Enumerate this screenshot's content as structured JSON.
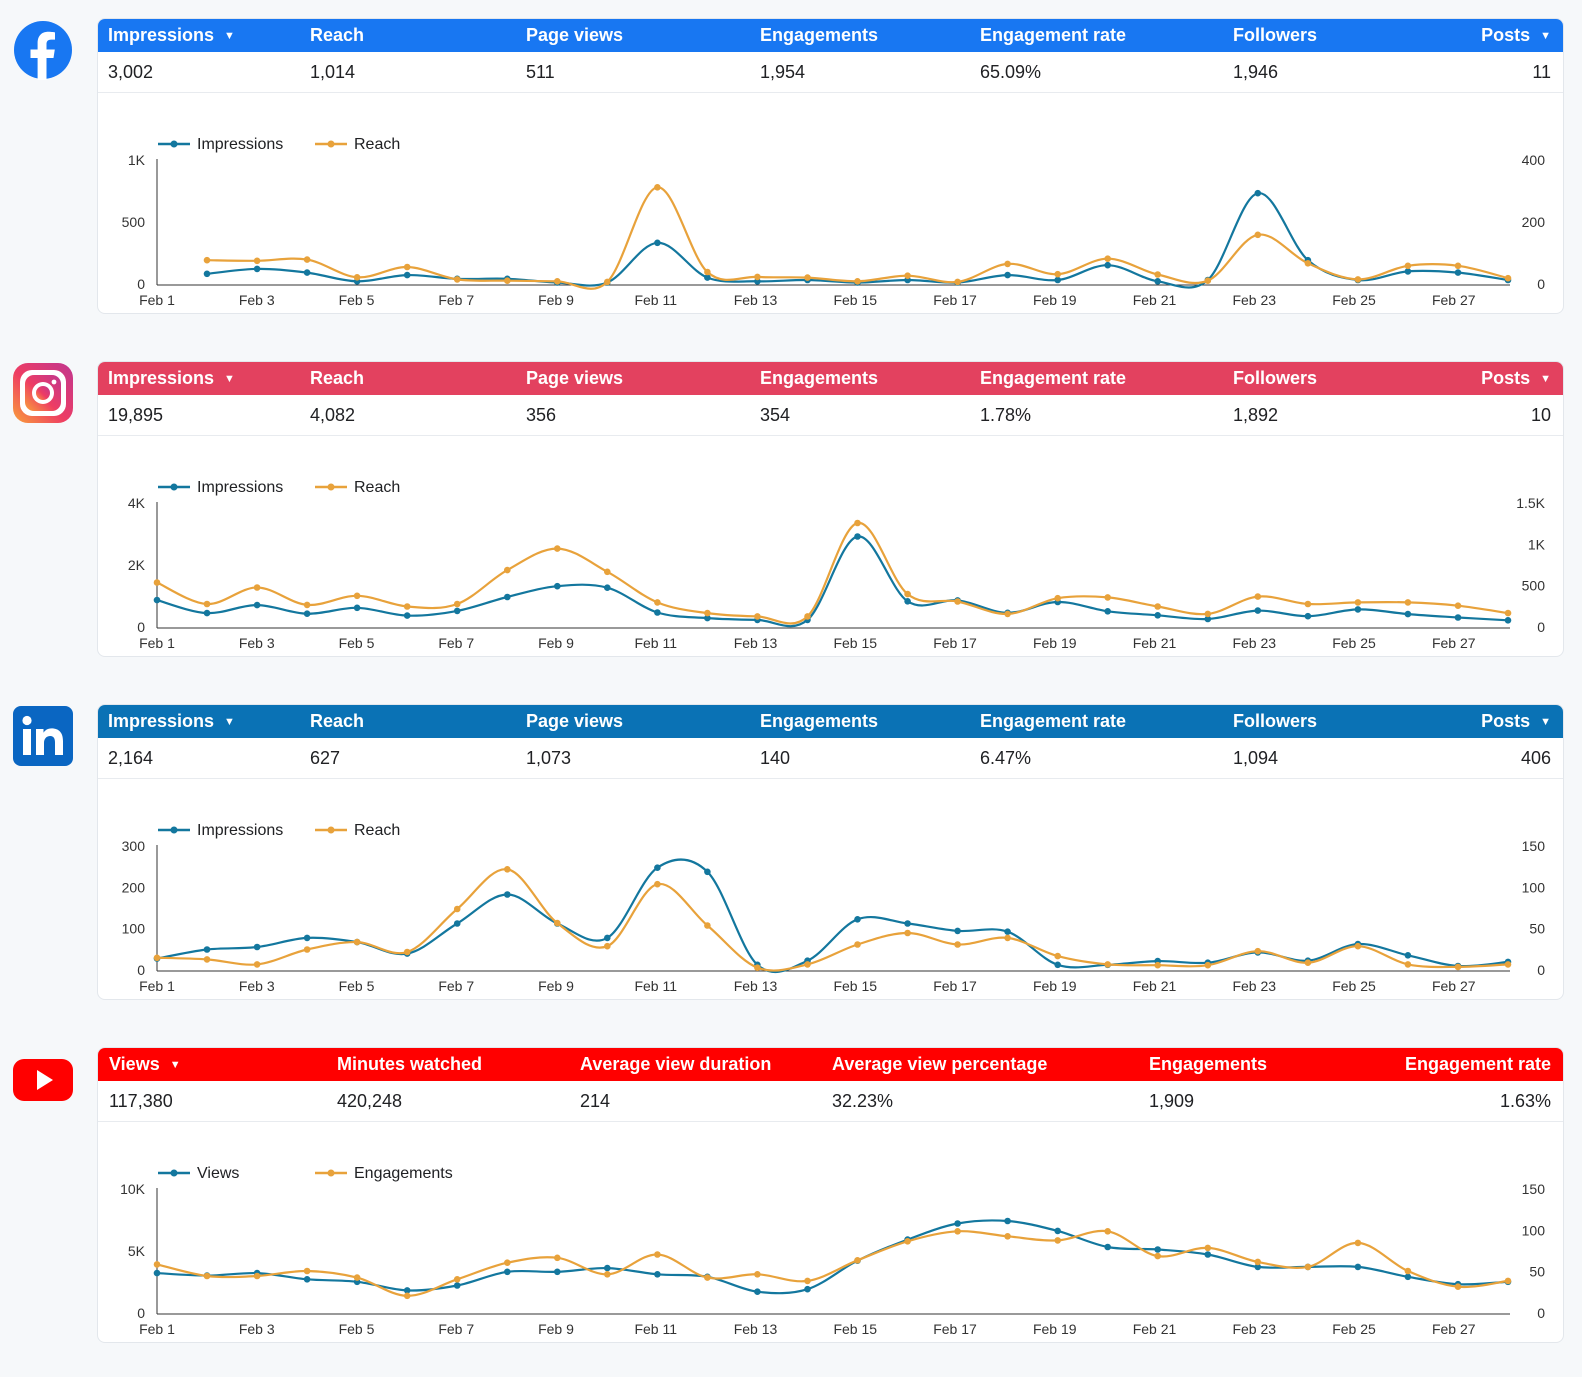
{
  "colors": {
    "primary_series": "#13779e",
    "secondary_series": "#e8a23b",
    "facebook": "#1877f2",
    "instagram": "#e3415f",
    "linkedin": "#0a72b5",
    "youtube": "#ff0000"
  },
  "x_labels": [
    "Feb 1",
    "Feb 3",
    "Feb 5",
    "Feb 7",
    "Feb 9",
    "Feb 11",
    "Feb 13",
    "Feb 15",
    "Feb 17",
    "Feb 19",
    "Feb 21",
    "Feb 23",
    "Feb 25",
    "Feb 27"
  ],
  "sections": [
    {
      "platform": "facebook",
      "icon": "facebook-logo-icon",
      "header_color": "#1877f2",
      "metrics": [
        {
          "label": "Impressions",
          "value": "3,002",
          "sortable": true
        },
        {
          "label": "Reach",
          "value": "1,014"
        },
        {
          "label": "Page views",
          "value": "511"
        },
        {
          "label": "Engagements",
          "value": "1,954"
        },
        {
          "label": "Engagement rate",
          "value": "65.09%"
        },
        {
          "label": "Followers",
          "value": "1,946"
        },
        {
          "label": "Posts",
          "value": "11",
          "sortable": true
        }
      ]
    },
    {
      "platform": "instagram",
      "icon": "instagram-logo-icon",
      "header_color": "#e3415f",
      "metrics": [
        {
          "label": "Impressions",
          "value": "19,895",
          "sortable": true
        },
        {
          "label": "Reach",
          "value": "4,082"
        },
        {
          "label": "Page views",
          "value": "356"
        },
        {
          "label": "Engagements",
          "value": "354"
        },
        {
          "label": "Engagement rate",
          "value": "1.78%"
        },
        {
          "label": "Followers",
          "value": "1,892"
        },
        {
          "label": "Posts",
          "value": "10",
          "sortable": true
        }
      ]
    },
    {
      "platform": "linkedin",
      "icon": "linkedin-logo-icon",
      "header_color": "#0a72b5",
      "metrics": [
        {
          "label": "Impressions",
          "value": "2,164",
          "sortable": true
        },
        {
          "label": "Reach",
          "value": "627"
        },
        {
          "label": "Page views",
          "value": "1,073"
        },
        {
          "label": "Engagements",
          "value": "140"
        },
        {
          "label": "Engagement rate",
          "value": "6.47%"
        },
        {
          "label": "Followers",
          "value": "1,094"
        },
        {
          "label": "Posts",
          "value": "406",
          "sortable": true
        }
      ]
    },
    {
      "platform": "youtube",
      "icon": "youtube-logo-icon",
      "header_color": "#ff0000",
      "metrics": [
        {
          "label": "Views",
          "value": "117,380",
          "sortable": true
        },
        {
          "label": "Minutes watched",
          "value": "420,248"
        },
        {
          "label": "Average view duration",
          "value": "214"
        },
        {
          "label": "Average view percentage",
          "value": "32.23%"
        },
        {
          "label": "Engagements",
          "value": "1,909"
        },
        {
          "label": "Engagement rate",
          "value": "1.63%"
        }
      ]
    }
  ],
  "chart_data": [
    {
      "type": "line",
      "platform": "facebook",
      "x": [
        "Feb 1",
        "Feb 2",
        "Feb 3",
        "Feb 4",
        "Feb 5",
        "Feb 6",
        "Feb 7",
        "Feb 8",
        "Feb 9",
        "Feb 10",
        "Feb 11",
        "Feb 12",
        "Feb 13",
        "Feb 14",
        "Feb 15",
        "Feb 16",
        "Feb 17",
        "Feb 18",
        "Feb 19",
        "Feb 20",
        "Feb 21",
        "Feb 22",
        "Feb 23",
        "Feb 24",
        "Feb 25",
        "Feb 26",
        "Feb 27",
        "Feb 28"
      ],
      "left_axis": {
        "ticks": [
          0,
          500,
          1000
        ],
        "tick_labels": [
          "0",
          "500",
          "1K"
        ],
        "range": [
          0,
          1000
        ]
      },
      "right_axis": {
        "ticks": [
          0,
          200,
          400
        ],
        "tick_labels": [
          "0",
          "200",
          "400"
        ],
        "range": [
          0,
          400
        ]
      },
      "legend_position": "top-left",
      "series": [
        {
          "name": "Impressions",
          "axis": "left",
          "color": "#13779e",
          "values": [
            null,
            90,
            130,
            100,
            30,
            80,
            50,
            50,
            20,
            20,
            340,
            60,
            30,
            40,
            20,
            40,
            20,
            80,
            40,
            160,
            30,
            40,
            740,
            200,
            40,
            110,
            100,
            40
          ]
        },
        {
          "name": "Reach",
          "axis": "right",
          "color": "#e8a23b",
          "values": [
            null,
            80,
            78,
            82,
            25,
            58,
            18,
            14,
            12,
            10,
            315,
            42,
            26,
            24,
            12,
            30,
            10,
            68,
            35,
            85,
            34,
            14,
            162,
            70,
            18,
            62,
            62,
            22
          ]
        }
      ]
    },
    {
      "type": "line",
      "platform": "instagram",
      "x": [
        "Feb 1",
        "Feb 2",
        "Feb 3",
        "Feb 4",
        "Feb 5",
        "Feb 6",
        "Feb 7",
        "Feb 8",
        "Feb 9",
        "Feb 10",
        "Feb 11",
        "Feb 12",
        "Feb 13",
        "Feb 14",
        "Feb 15",
        "Feb 16",
        "Feb 17",
        "Feb 18",
        "Feb 19",
        "Feb 20",
        "Feb 21",
        "Feb 22",
        "Feb 23",
        "Feb 24",
        "Feb 25",
        "Feb 26",
        "Feb 27",
        "Feb 28"
      ],
      "left_axis": {
        "ticks": [
          0,
          2000,
          4000
        ],
        "tick_labels": [
          "0",
          "2K",
          "4K"
        ],
        "range": [
          0,
          4000
        ]
      },
      "right_axis": {
        "ticks": [
          0,
          500,
          1000,
          1500
        ],
        "tick_labels": [
          "0",
          "500",
          "1K",
          "1.5K"
        ],
        "range": [
          0,
          1500
        ]
      },
      "legend_position": "top-left",
      "series": [
        {
          "name": "Impressions",
          "axis": "left",
          "color": "#13779e",
          "values": [
            900,
            480,
            740,
            460,
            650,
            400,
            550,
            1000,
            1350,
            1300,
            500,
            320,
            260,
            260,
            2950,
            860,
            890,
            490,
            840,
            540,
            410,
            290,
            560,
            380,
            600,
            450,
            340,
            250
          ]
        },
        {
          "name": "Reach",
          "axis": "right",
          "color": "#e8a23b",
          "values": [
            550,
            290,
            490,
            280,
            390,
            260,
            290,
            700,
            960,
            680,
            310,
            180,
            140,
            140,
            1270,
            410,
            320,
            170,
            360,
            370,
            260,
            170,
            380,
            290,
            310,
            310,
            270,
            180
          ]
        }
      ]
    },
    {
      "type": "line",
      "platform": "linkedin",
      "x": [
        "Feb 1",
        "Feb 2",
        "Feb 3",
        "Feb 4",
        "Feb 5",
        "Feb 6",
        "Feb 7",
        "Feb 8",
        "Feb 9",
        "Feb 10",
        "Feb 11",
        "Feb 12",
        "Feb 13",
        "Feb 14",
        "Feb 15",
        "Feb 16",
        "Feb 17",
        "Feb 18",
        "Feb 19",
        "Feb 20",
        "Feb 21",
        "Feb 22",
        "Feb 23",
        "Feb 24",
        "Feb 25",
        "Feb 26",
        "Feb 27",
        "Feb 28"
      ],
      "left_axis": {
        "ticks": [
          0,
          100,
          200,
          300
        ],
        "tick_labels": [
          "0",
          "100",
          "200",
          "300"
        ],
        "range": [
          0,
          300
        ]
      },
      "right_axis": {
        "ticks": [
          0,
          50,
          100,
          150
        ],
        "tick_labels": [
          "0",
          "50",
          "100",
          "150"
        ],
        "range": [
          0,
          150
        ]
      },
      "legend_position": "top-left",
      "series": [
        {
          "name": "Impressions",
          "axis": "left",
          "color": "#13779e",
          "values": [
            30,
            52,
            58,
            80,
            70,
            42,
            115,
            185,
            115,
            80,
            250,
            240,
            15,
            25,
            125,
            115,
            97,
            95,
            15,
            15,
            24,
            20,
            45,
            25,
            65,
            38,
            12,
            22
          ]
        },
        {
          "name": "Reach",
          "axis": "right",
          "color": "#e8a23b",
          "values": [
            16,
            14,
            8,
            26,
            35,
            23,
            75,
            123,
            58,
            30,
            105,
            55,
            4,
            8,
            32,
            46,
            32,
            40,
            18,
            8,
            7,
            7,
            24,
            10,
            30,
            8,
            5,
            8
          ]
        }
      ]
    },
    {
      "type": "line",
      "platform": "youtube",
      "x": [
        "Feb 1",
        "Feb 2",
        "Feb 3",
        "Feb 4",
        "Feb 5",
        "Feb 6",
        "Feb 7",
        "Feb 8",
        "Feb 9",
        "Feb 10",
        "Feb 11",
        "Feb 12",
        "Feb 13",
        "Feb 14",
        "Feb 15",
        "Feb 16",
        "Feb 17",
        "Feb 18",
        "Feb 19",
        "Feb 20",
        "Feb 21",
        "Feb 22",
        "Feb 23",
        "Feb 24",
        "Feb 25",
        "Feb 26",
        "Feb 27",
        "Feb 28"
      ],
      "left_axis": {
        "ticks": [
          0,
          5000,
          10000
        ],
        "tick_labels": [
          "0",
          "5K",
          "10K"
        ],
        "range": [
          0,
          10000
        ]
      },
      "right_axis": {
        "ticks": [
          0,
          50,
          100,
          150
        ],
        "tick_labels": [
          "0",
          "50",
          "100",
          "150"
        ],
        "range": [
          0,
          150
        ]
      },
      "legend_position": "top-left",
      "series": [
        {
          "name": "Views",
          "axis": "left",
          "color": "#13779e",
          "values": [
            3300,
            3100,
            3300,
            2800,
            2600,
            1900,
            2300,
            3400,
            3400,
            3700,
            3200,
            3000,
            1800,
            2000,
            4300,
            6000,
            7300,
            7500,
            6700,
            5400,
            5200,
            4800,
            3800,
            3800,
            3800,
            3000,
            2400,
            2600
          ]
        },
        {
          "name": "Engagements",
          "axis": "right",
          "color": "#e8a23b",
          "values": [
            60,
            46,
            46,
            52,
            44,
            22,
            42,
            62,
            68,
            48,
            72,
            44,
            48,
            40,
            65,
            88,
            100,
            94,
            89,
            100,
            70,
            80,
            63,
            57,
            86,
            52,
            33,
            40
          ]
        }
      ]
    }
  ]
}
